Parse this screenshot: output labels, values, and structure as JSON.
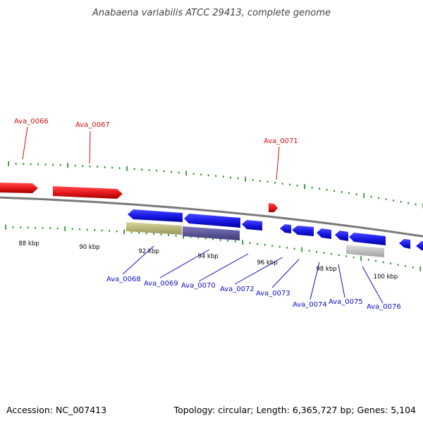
{
  "title": "Anabaena variabilis ATCC 29413, complete genome",
  "footer": {
    "accession": "Accession: NC_007413",
    "summary": "Topology: circular; Length: 6,365,727 bp; Genes: 5,104"
  },
  "colors": {
    "forward_gene": "#e8191b",
    "reverse_gene": "#1a1ae6",
    "backbone": "#888888",
    "tick": "#1a8a1a",
    "forward_label": "#d01010",
    "reverse_label": "#1010c0",
    "rna_olive": "#bdb97a",
    "rna_purple": "#5e5a9a",
    "rna_grey": "#c8c8c8"
  },
  "scale": {
    "unit": "kbp",
    "labels": [
      "88 kbp",
      "90 kbp",
      "92 kbp",
      "94 kbp",
      "96 kbp",
      "98 kbp",
      "100 kbp"
    ]
  },
  "genes": {
    "forward": [
      "Ava_0066",
      "Ava_0067",
      "Ava_0071"
    ],
    "reverse": [
      "Ava_0068",
      "Ava_0069",
      "Ava_0070",
      "Ava_0072",
      "Ava_0073",
      "Ava_0074",
      "Ava_0075",
      "Ava_0076"
    ]
  }
}
